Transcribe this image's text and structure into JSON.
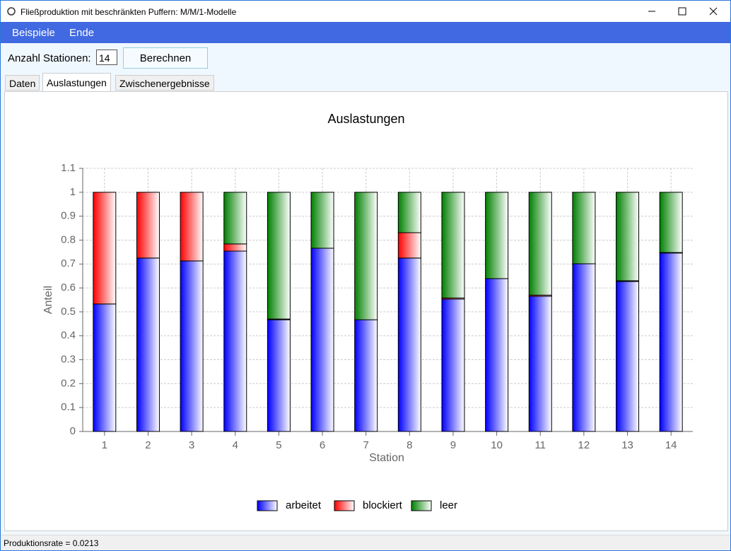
{
  "window": {
    "title": "Fließproduktion mit beschränkten Puffern: M/M/1-Modelle"
  },
  "menu": [
    "Beispiele",
    "Ende"
  ],
  "controls": {
    "stations_label": "Anzahl Stationen:",
    "stations_value": "14",
    "button": "Berechnen"
  },
  "tabs": [
    "Daten",
    "Auslastungen",
    "Zwischenergebnisse"
  ],
  "chart_data": {
    "type": "stacked_bar",
    "title": "Auslastungen",
    "x_label": "Station",
    "y_label": "Anteil",
    "categories": [
      "1",
      "2",
      "3",
      "4",
      "5",
      "6",
      "7",
      "8",
      "9",
      "10",
      "11",
      "12",
      "13",
      "14"
    ],
    "series": [
      {
        "name": "arbeitet",
        "color": "#0000ff",
        "values": [
          0.533,
          0.725,
          0.713,
          0.754,
          0.467,
          0.766,
          0.467,
          0.725,
          0.553,
          0.639,
          0.565,
          0.701,
          0.627,
          0.746
        ]
      },
      {
        "name": "blockiert",
        "color": "#ff0000",
        "values": [
          0.467,
          0.275,
          0.287,
          0.03,
          0.003,
          0,
          0,
          0.106,
          0.005,
          0,
          0.005,
          0,
          0.003,
          0.002
        ]
      },
      {
        "name": "leer",
        "color": "#008000",
        "values": [
          0,
          0,
          0,
          0.216,
          0.53,
          0.234,
          0.533,
          0.169,
          0.442,
          0.361,
          0.43,
          0.299,
          0.37,
          0.252
        ]
      }
    ],
    "ylim": [
      0,
      1.1
    ],
    "yticks": [
      0,
      0.1,
      0.2,
      0.3,
      0.4,
      0.5,
      0.6,
      0.7,
      0.8,
      0.9,
      1,
      1.1
    ],
    "grid": true,
    "legend": "bottom"
  },
  "status": "Produktionsrate = 0.0213"
}
